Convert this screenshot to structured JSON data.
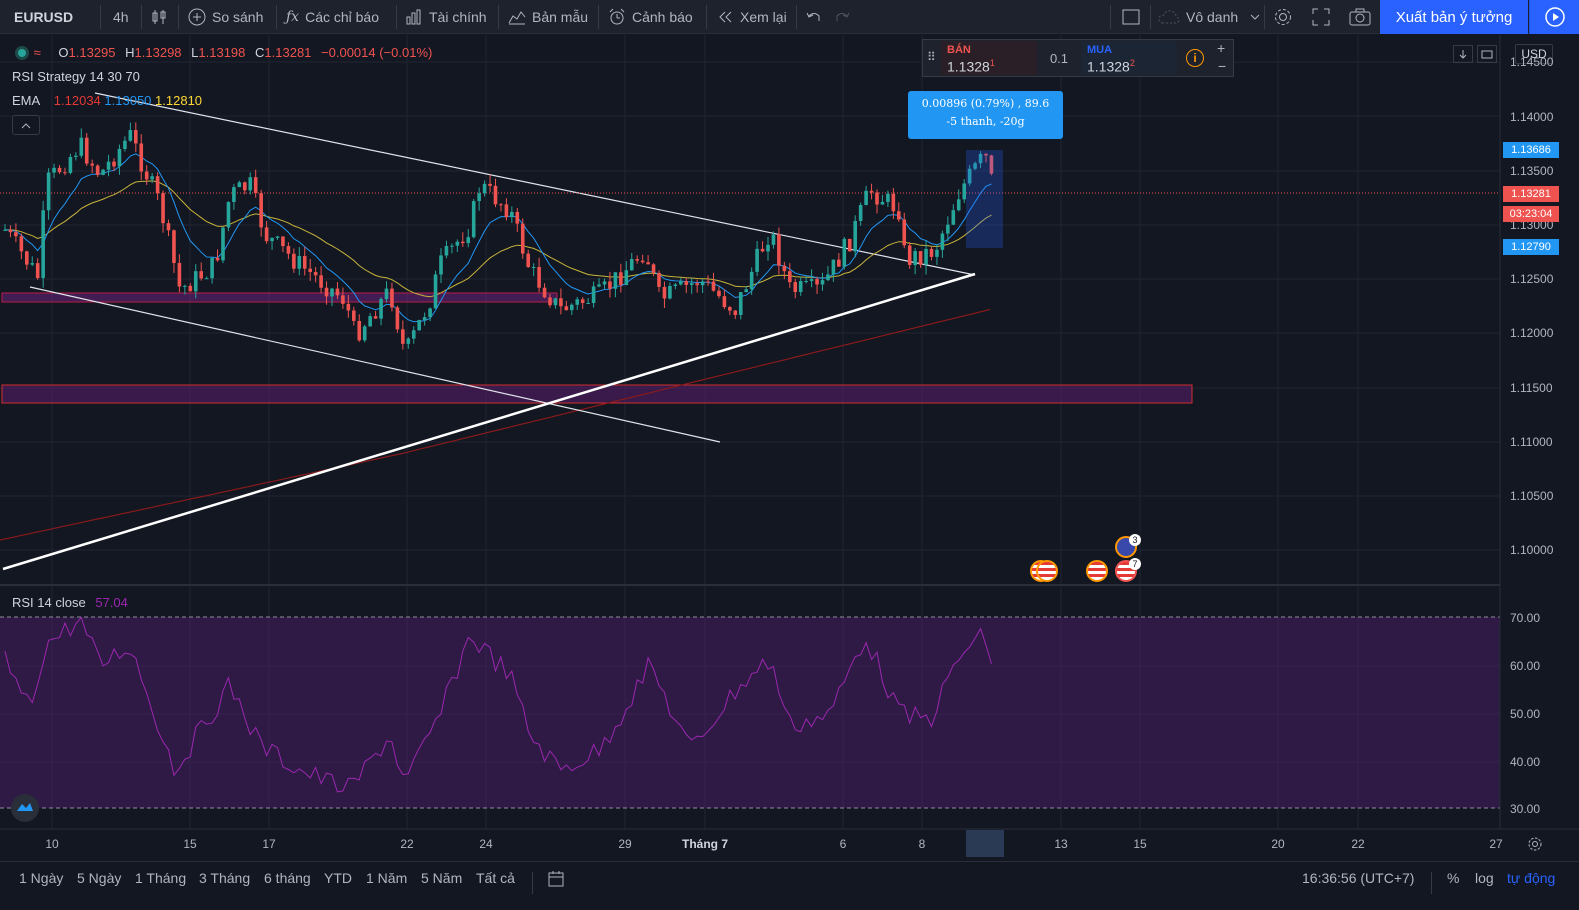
{
  "toolbar": {
    "symbol": "EURUSD",
    "interval": "4h",
    "compare": "So sánh",
    "indicators": "Các chỉ báo",
    "financials": "Tài chính",
    "templates": "Bản mẫu",
    "alert": "Cảnh báo",
    "replay": "Xem lại",
    "layout_name": "Vô danh",
    "publish": "Xuất bản ý tưởng"
  },
  "ohlc": {
    "o_label": "O",
    "o": "1.13295",
    "h_label": "H",
    "h": "1.13298",
    "l_label": "L",
    "l": "1.13198",
    "c_label": "C",
    "c": "1.13281",
    "change": "−0.00014 (−0.01%)"
  },
  "studies": {
    "rsi_strategy": "RSI Strategy 14 30 70",
    "ema_label": "EMA",
    "ema_values": [
      "1.12034",
      "1.13050",
      "1.12810"
    ],
    "rsi_label": "RSI 14 close",
    "rsi_value": "57.04"
  },
  "trade": {
    "sell_label": "BÁN",
    "sell_price": "1.1328",
    "sell_sup": "1",
    "qty": "0.1",
    "buy_label": "MUA",
    "buy_price": "1.1328",
    "buy_sup": "2"
  },
  "measure": {
    "line1": "0.00896 (0.79%) , 89.6",
    "line2": "-5 thanh, -20g"
  },
  "price_axis": {
    "currency": "USD",
    "labels": [
      "1.14500",
      "1.14000",
      "1.13500",
      "1.13000",
      "1.12500",
      "1.12000",
      "1.11500",
      "1.11000",
      "1.10500",
      "1.10000"
    ],
    "badges": {
      "high": "1.13686",
      "last": "1.13281",
      "countdown": "03:23:04",
      "low": "1.12790"
    }
  },
  "rsi_axis": [
    "70.00",
    "60.00",
    "50.00",
    "40.00",
    "30.00"
  ],
  "time_axis": [
    "10",
    "15",
    "17",
    "22",
    "24",
    "29",
    "Tháng 7",
    "6",
    "8",
    "13",
    "15",
    "20",
    "22",
    "27"
  ],
  "event_badges": [
    "3",
    "7"
  ],
  "ranges": [
    "1 Ngày",
    "5 Ngày",
    "1 Tháng",
    "3 Tháng",
    "6 tháng",
    "YTD",
    "1 Năm",
    "5 Năm",
    "Tất cả"
  ],
  "footer": {
    "clock": "16:36:56 (UTC+7)",
    "percent": "%",
    "log": "log",
    "auto": "tự động"
  },
  "colors": {
    "background": "#131722",
    "up": "#26a69a",
    "down": "#ef5350",
    "rsi": "#9c27b0",
    "accent": "#2962ff",
    "ema_red": "#e53935",
    "ema_blue": "#2196f3",
    "ema_yellow": "#fdd835"
  }
}
